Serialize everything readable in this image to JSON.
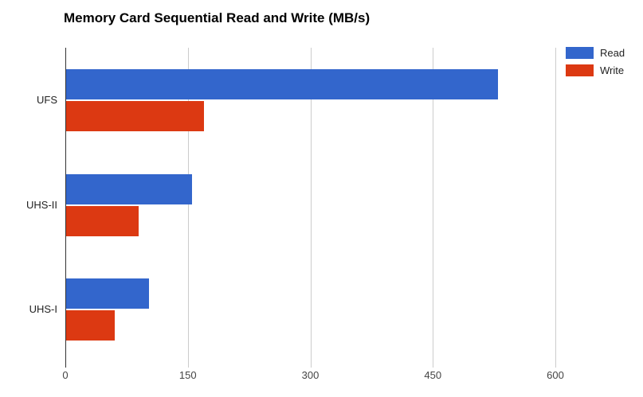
{
  "title": "Memory Card Sequential Read and Write (MB/s)",
  "colors": {
    "read": "#3366CC",
    "write": "#DC3912",
    "gridline": "#CCCCCC",
    "axis_line": "#333333",
    "title_text": "#000000",
    "category_text": "#222222",
    "tick_text": "#444444",
    "background": "#FFFFFF"
  },
  "legend": {
    "items": [
      {
        "label": "Read",
        "color": "#3366CC"
      },
      {
        "label": "Write",
        "color": "#DC3912"
      }
    ]
  },
  "chart_data": {
    "type": "bar",
    "orientation": "horizontal",
    "title": "Memory Card Sequential Read and Write (MB/s)",
    "categories": [
      "UFS",
      "UHS-II",
      "UHS-I"
    ],
    "series": [
      {
        "name": "Read",
        "color": "#3366CC",
        "values": [
          530,
          155,
          102
        ]
      },
      {
        "name": "Write",
        "color": "#DC3912",
        "values": [
          170,
          90,
          60
        ]
      }
    ],
    "xlabel": "",
    "ylabel": "",
    "x_ticks": [
      0,
      150,
      300,
      450,
      600
    ],
    "xlim": [
      0,
      600
    ],
    "grid": true,
    "legend_position": "top-right"
  }
}
